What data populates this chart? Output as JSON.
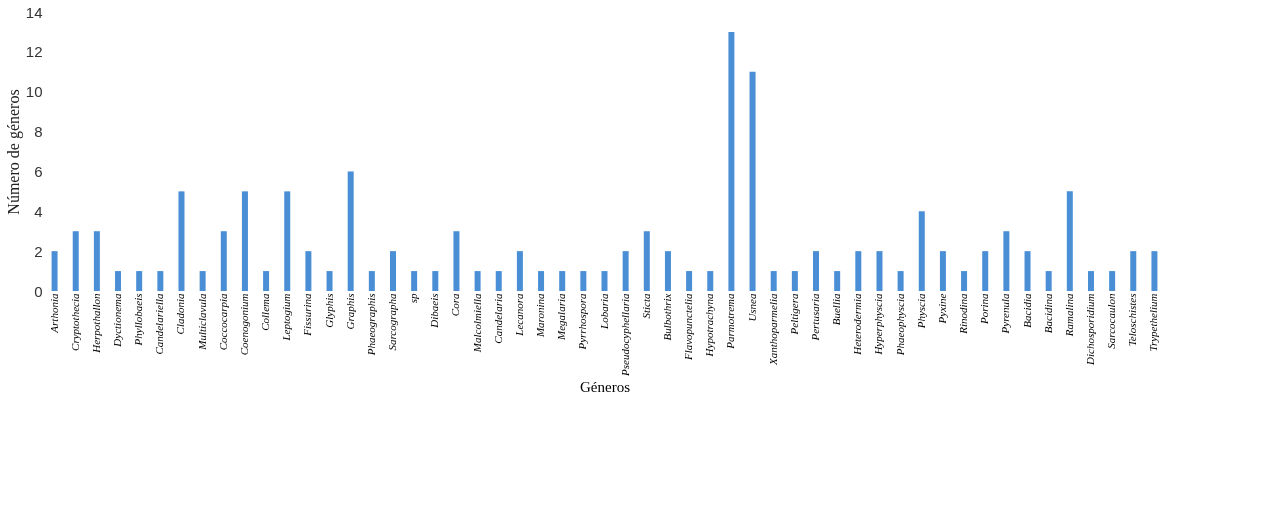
{
  "chart_data": {
    "type": "bar",
    "xlabel": "Géneros",
    "ylabel": "Número de géneros",
    "categories": [
      "Arthonia",
      "Cryptothecia",
      "Herpothallon",
      "Dyctionema",
      "Phyllobaeis",
      "Candelariella",
      "Cladonia",
      "Multiclavula",
      "Coccocarpia",
      "Coenogonium",
      "Collema",
      "Leptogium",
      "Fissurina",
      "Glyphis",
      "Graphis",
      "Phaeographis",
      "Sarcographa",
      "sp",
      "Dibaeis",
      "Cora",
      "Malcolmiella",
      "Candelaria",
      "Lecanora",
      "Maronina",
      "Megalaria",
      "Pyrrhospora",
      "Lobaria",
      "Pseudocyphellaria",
      "Sticta",
      "Bulbothrix",
      "Flavopunctelia",
      "Hypotrachyna",
      "Parmotrema",
      "Usnea",
      "Xanthoparmelia",
      "Peltigera",
      "Pertusaria",
      "Buellia",
      "Heterodermia",
      "Hyperphyscia",
      "Phaeophyscia",
      "Physcia",
      "Pyxine",
      "Rinodina",
      "Porina",
      "Pyrenula",
      "Bacidia",
      "Bacidina",
      "Ramalina",
      "Dichosporidium",
      "Sarcocaulon",
      "Teloschistes",
      "Trypethelium"
    ],
    "values": [
      2,
      3,
      3,
      1,
      1,
      1,
      5,
      1,
      3,
      5,
      1,
      5,
      2,
      1,
      6,
      1,
      2,
      1,
      1,
      3,
      1,
      1,
      2,
      1,
      1,
      1,
      1,
      2,
      3,
      2,
      1,
      1,
      13,
      11,
      1,
      1,
      2,
      1,
      2,
      2,
      1,
      4,
      2,
      1,
      2,
      3,
      2,
      1,
      5,
      1,
      1,
      2,
      2
    ],
    "color": "#4a8fd6",
    "ylim": [
      0,
      14
    ],
    "yticks": [
      0,
      2,
      4,
      6,
      8,
      10,
      12,
      14
    ],
    "grid": false
  }
}
